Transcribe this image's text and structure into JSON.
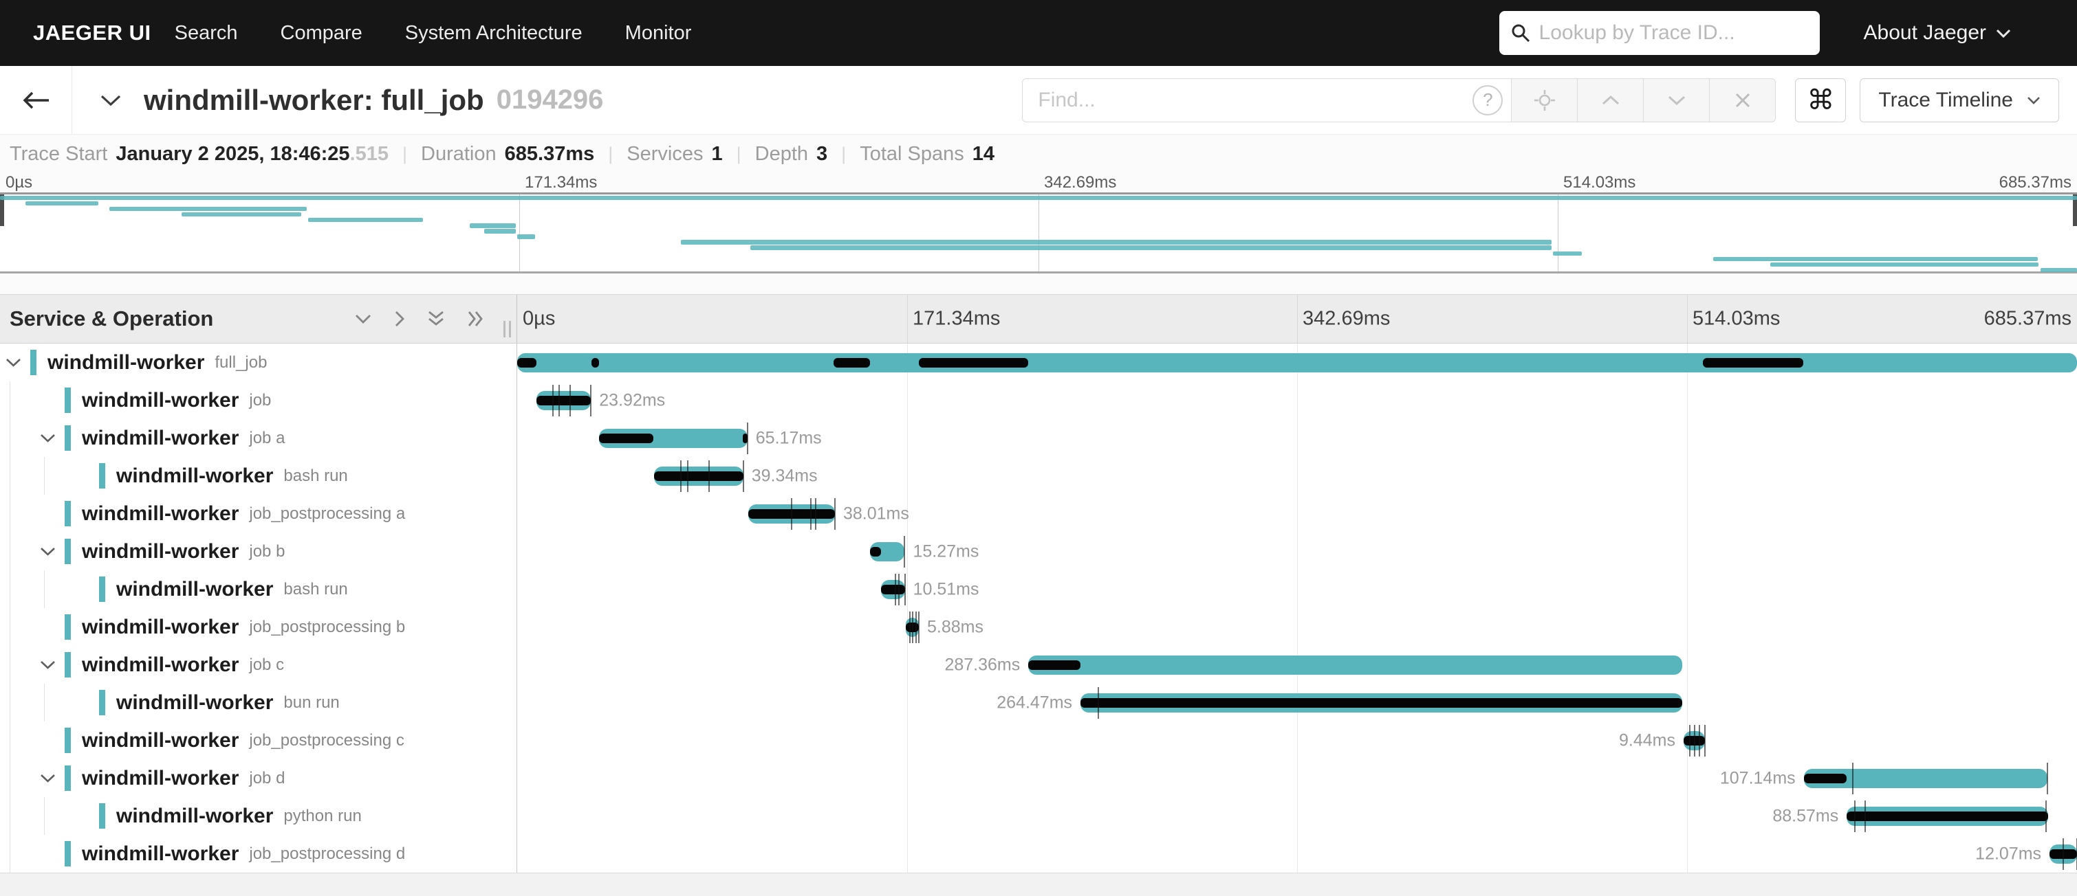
{
  "nav": {
    "brand": "JAEGER UI",
    "items": [
      "Search",
      "Compare",
      "System Architecture",
      "Monitor"
    ],
    "lookup_placeholder": "Lookup by Trace ID...",
    "about_label": "About Jaeger"
  },
  "trace_header": {
    "title": "windmill-worker: full_job",
    "trace_id": "0194296",
    "find_placeholder": "Find...",
    "help_label": "?",
    "shortcut_label": "⌘",
    "view_label": "Trace Timeline"
  },
  "summary": {
    "items": [
      {
        "label": "Trace Start",
        "value": "January 2 2025, 18:46:25",
        "suffix": ".515"
      },
      {
        "label": "Duration",
        "value": "685.37ms",
        "suffix": ""
      },
      {
        "label": "Services",
        "value": "1",
        "suffix": ""
      },
      {
        "label": "Depth",
        "value": "3",
        "suffix": ""
      },
      {
        "label": "Total Spans",
        "value": "14",
        "suffix": ""
      }
    ]
  },
  "timeline": {
    "left_header": "Service & Operation",
    "ticks": [
      "0µs",
      "171.34ms",
      "342.69ms",
      "514.03ms",
      "685.37ms"
    ],
    "total_ms": 685.37
  },
  "colors": {
    "accent": "#58b5bb",
    "nav_bg": "#161616",
    "overlay": "#060606"
  },
  "spans": [
    {
      "service": "windmill-worker",
      "operation": "full_job",
      "depth": 0,
      "has_children": true,
      "start_ms": 0,
      "duration_ms": 685.37,
      "label": "",
      "label_side": "none",
      "self_segments": [
        [
          0,
          0.0124
        ],
        [
          0.0475,
          0.0525
        ],
        [
          0.203,
          0.226
        ],
        [
          0.2575,
          0.3275
        ],
        [
          0.76,
          0.8245
        ]
      ],
      "log_ticks": []
    },
    {
      "service": "windmill-worker",
      "operation": "job",
      "depth": 1,
      "has_children": false,
      "start_ms": 8.5,
      "duration_ms": 23.92,
      "label": "23.92ms",
      "label_side": "right",
      "self_segments": [
        [
          0,
          1
        ]
      ],
      "log_ticks": [
        0.3,
        0.42,
        0.62,
        1
      ]
    },
    {
      "service": "windmill-worker",
      "operation": "job a",
      "depth": 1,
      "has_children": true,
      "start_ms": 36.0,
      "duration_ms": 65.17,
      "label": "65.17ms",
      "label_side": "right",
      "self_segments": [
        [
          0,
          0.368
        ],
        [
          0.968,
          1
        ]
      ],
      "log_ticks": [
        1
      ]
    },
    {
      "service": "windmill-worker",
      "operation": "bash run",
      "depth": 2,
      "has_children": false,
      "start_ms": 60.0,
      "duration_ms": 39.34,
      "label": "39.34ms",
      "label_side": "right",
      "self_segments": [
        [
          0,
          1
        ]
      ],
      "log_ticks": [
        0.3,
        0.38,
        0.62,
        1
      ]
    },
    {
      "service": "windmill-worker",
      "operation": "job_postprocessing a",
      "depth": 1,
      "has_children": false,
      "start_ms": 101.6,
      "duration_ms": 38.01,
      "label": "38.01ms",
      "label_side": "right",
      "self_segments": [
        [
          0,
          1
        ]
      ],
      "log_ticks": [
        0.5,
        0.72,
        0.78,
        1
      ]
    },
    {
      "service": "windmill-worker",
      "operation": "job b",
      "depth": 1,
      "has_children": true,
      "start_ms": 155.0,
      "duration_ms": 15.27,
      "label": "15.27ms",
      "label_side": "right",
      "self_segments": [
        [
          0,
          0.314
        ]
      ],
      "log_ticks": [
        1
      ]
    },
    {
      "service": "windmill-worker",
      "operation": "bash run",
      "depth": 2,
      "has_children": false,
      "start_ms": 159.8,
      "duration_ms": 10.51,
      "label": "10.51ms",
      "label_side": "right",
      "self_segments": [
        [
          0,
          1
        ]
      ],
      "log_ticks": [
        0.6,
        0.75,
        1
      ]
    },
    {
      "service": "windmill-worker",
      "operation": "job_postprocessing b",
      "depth": 1,
      "has_children": false,
      "start_ms": 170.6,
      "duration_ms": 5.88,
      "label": "5.88ms",
      "label_side": "right",
      "self_segments": [
        [
          0,
          1
        ]
      ],
      "log_ticks": [
        0.35,
        0.55,
        0.8,
        1
      ]
    },
    {
      "service": "windmill-worker",
      "operation": "job c",
      "depth": 1,
      "has_children": true,
      "start_ms": 224.6,
      "duration_ms": 287.36,
      "label": "287.36ms",
      "label_side": "left",
      "self_segments": [
        [
          0,
          0.08
        ]
      ],
      "log_ticks": []
    },
    {
      "service": "windmill-worker",
      "operation": "bun run",
      "depth": 2,
      "has_children": false,
      "start_ms": 247.5,
      "duration_ms": 264.47,
      "label": "264.47ms",
      "label_side": "left",
      "self_segments": [
        [
          0,
          1
        ]
      ],
      "log_ticks": [
        0.03
      ]
    },
    {
      "service": "windmill-worker",
      "operation": "job_postprocessing c",
      "depth": 1,
      "has_children": false,
      "start_ms": 512.5,
      "duration_ms": 9.44,
      "label": "9.44ms",
      "label_side": "left",
      "self_segments": [
        [
          0,
          1
        ]
      ],
      "log_ticks": [
        0.3,
        0.5,
        0.75,
        1
      ]
    },
    {
      "service": "windmill-worker",
      "operation": "job d",
      "depth": 1,
      "has_children": true,
      "start_ms": 565.3,
      "duration_ms": 107.14,
      "label": "107.14ms",
      "label_side": "left",
      "self_segments": [
        [
          0,
          0.177
        ]
      ],
      "log_ticks": [
        0.2,
        1
      ]
    },
    {
      "service": "windmill-worker",
      "operation": "python run",
      "depth": 2,
      "has_children": false,
      "start_ms": 584.2,
      "duration_ms": 88.57,
      "label": "88.57ms",
      "label_side": "left",
      "self_segments": [
        [
          0,
          1
        ]
      ],
      "log_ticks": [
        0.04,
        0.09,
        0.99
      ]
    },
    {
      "service": "windmill-worker",
      "operation": "job_postprocessing d",
      "depth": 1,
      "has_children": false,
      "start_ms": 673.3,
      "duration_ms": 12.07,
      "label": "12.07ms",
      "label_side": "left",
      "self_segments": [
        [
          0,
          1
        ]
      ],
      "log_ticks": [
        0.5,
        1
      ]
    }
  ]
}
